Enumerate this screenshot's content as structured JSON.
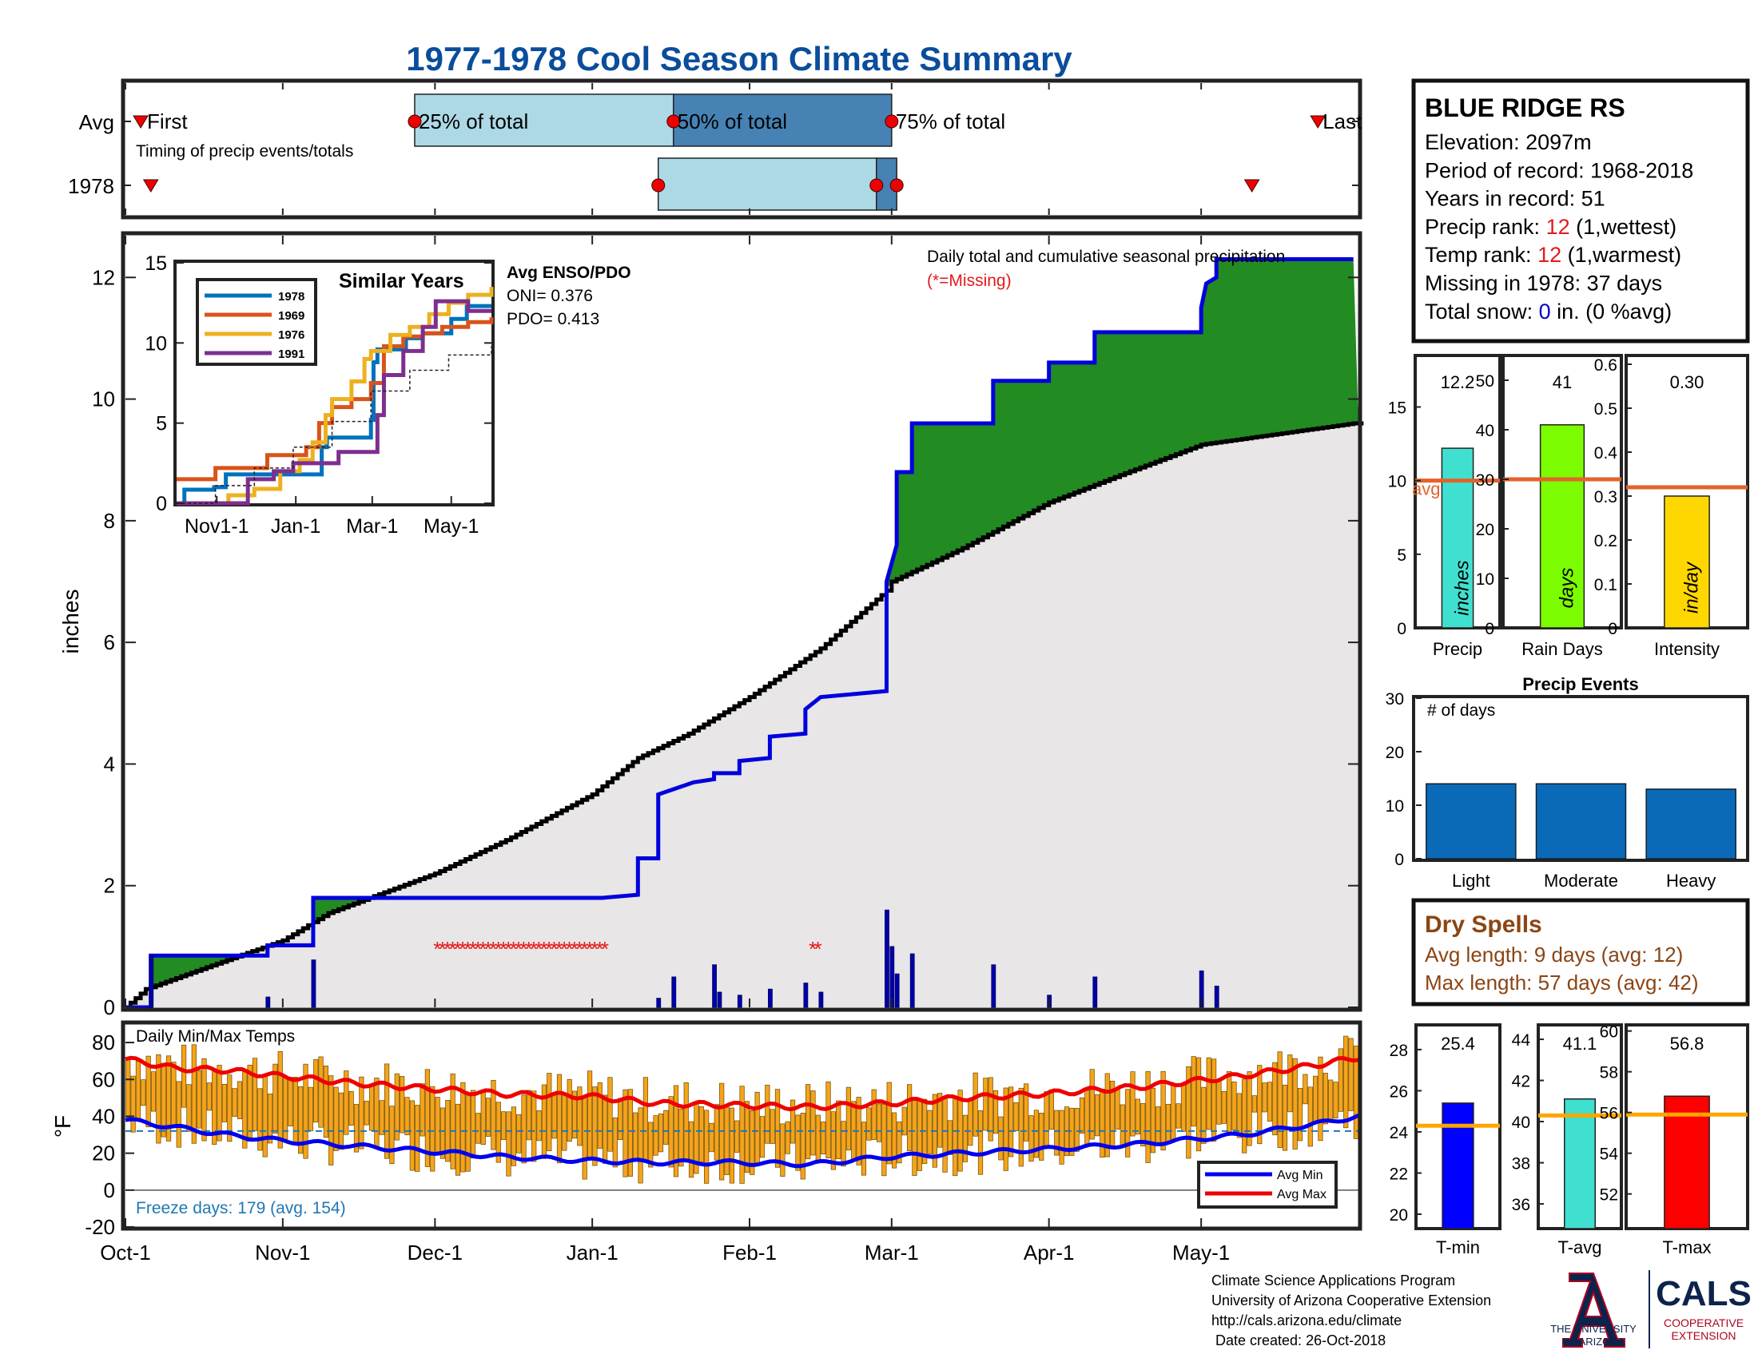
{
  "title": "1977-1978 Cool Season Climate Summary",
  "timing": {
    "rows": [
      "Avg",
      "1978"
    ],
    "subtitle": "Timing of precip events/totals",
    "labels": {
      "first": "First",
      "p25": "25% of total",
      "p50": "50% of total",
      "p75": "75% of total",
      "last": "Last"
    },
    "avg": {
      "first": "1977-10-04",
      "p25": "1977-11-27",
      "p50": "1978-01-17",
      "p75": "1978-03-01",
      "last": "1978-05-24"
    },
    "year": {
      "first": "1977-10-06",
      "p25": "1978-01-14",
      "p50": "1978-02-26",
      "p75": "1978-03-02",
      "last": "1978-05-11"
    },
    "colors": {
      "q1": "#add8e6",
      "q2": "#4682b4"
    }
  },
  "station": {
    "name": "BLUE RIDGE RS",
    "lines": [
      {
        "prefix": "Elevation: 2097m"
      },
      {
        "prefix": "Period of record: 1968-2018"
      },
      {
        "prefix": "Years in record: 51"
      },
      {
        "prefix": "Precip rank: ",
        "value": "12",
        "suffix": " (1,wettest)",
        "value_color": "#e41a1c"
      },
      {
        "prefix": "Temp rank: ",
        "value": "12",
        "suffix": " (1,warmest)",
        "value_color": "#e41a1c"
      },
      {
        "prefix": "Missing in 1978: 37 days"
      },
      {
        "prefix": "Total snow: ",
        "value": "0",
        "suffix": " in. (0 %avg)",
        "value_color": "#0000cc"
      }
    ]
  },
  "precip": {
    "ylabel": "inches",
    "note": "Daily total and cumulative seasonal precipitation",
    "missing_note": "(*=Missing)",
    "colors": {
      "above": "#228b22",
      "below": "#b8860b",
      "obs": "#0000dd",
      "avg": "#000000",
      "missing": "#e41a1c",
      "fill": "#e8e6e6"
    }
  },
  "inset": {
    "title": "Similar Years",
    "x_ticks": [
      "Nov1-1",
      "Jan-1",
      "Mar-1",
      "May-1"
    ],
    "y_ticks": [
      "0",
      "5",
      "10",
      "15"
    ],
    "legend": [
      "1978",
      "1969",
      "1976",
      "1991"
    ],
    "colors": [
      "#0072bd",
      "#d95319",
      "#edb120",
      "#7e2f8e"
    ]
  },
  "enso": {
    "title": "Avg ENSO/PDO",
    "oni": "ONI= 0.376",
    "pdo": "PDO= 0.413"
  },
  "temps": {
    "title": "Daily Min/Max Temps",
    "ylabel": "°F",
    "freeze_text": "Freeze days: 179 (avg. 154)",
    "legend_min": "Avg Min",
    "legend_max": "Avg Max",
    "colors": {
      "bars": "#f5a31a",
      "min": "#0000ee",
      "max": "#ee0000",
      "freeze": "#1f77b4"
    }
  },
  "x_axis": {
    "ticks": [
      "Oct-1",
      "Nov-1",
      "Dec-1",
      "Jan-1",
      "Feb-1",
      "Mar-1",
      "Apr-1",
      "May-1"
    ]
  },
  "summary_bars": [
    {
      "label": "Precip",
      "unit": "inches",
      "value": 12.2,
      "value_text": "12.2",
      "avg": 10,
      "avg_label": "avg",
      "ymax": 18.5,
      "ticks": [
        "0",
        "5",
        "10",
        "15"
      ],
      "color": "#40e0d0"
    },
    {
      "label": "Rain Days",
      "unit": "days",
      "value": 41,
      "value_text": "41",
      "avg": 30,
      "ymax": 55,
      "ticks": [
        "0",
        "10",
        "20",
        "30",
        "40",
        "50"
      ],
      "color": "#7cfc00"
    },
    {
      "label": "Intensity",
      "unit": "in/day",
      "value": 0.3,
      "value_text": "0.30",
      "avg": 0.32,
      "ymax": 0.62,
      "ticks": [
        "0",
        "0.1",
        "0.2",
        "0.3",
        "0.4",
        "0.5",
        "0.6"
      ],
      "color": "#ffd700"
    }
  ],
  "events": {
    "title": "Precip Events",
    "ylabel": "# of days",
    "ticks": [
      "0",
      "10",
      "20",
      "30"
    ],
    "categories": [
      "Light",
      "Moderate",
      "Heavy"
    ],
    "values": [
      14,
      14,
      13
    ],
    "color": "#0a6ab8"
  },
  "dry_spells": {
    "title": "Dry Spells",
    "avg_line": "Avg length: 9 days (avg: 12)",
    "max_line": "Max length: 57 days (avg: 42)",
    "color": "#8b4513"
  },
  "temp_bars": [
    {
      "label": "T-min",
      "value": 25.4,
      "value_text": "25.4",
      "avg": 24.3,
      "ylim": [
        19.3,
        29.2
      ],
      "ticks": [
        "20",
        "22",
        "24",
        "26",
        "28"
      ],
      "color": "#0000ff"
    },
    {
      "label": "T-avg",
      "value": 41.1,
      "value_text": "41.1",
      "avg": 40.3,
      "ylim": [
        34.8,
        44.7
      ],
      "ticks": [
        "36",
        "38",
        "40",
        "42",
        "44"
      ],
      "color": "#40e0d0"
    },
    {
      "label": "T-max",
      "value": 56.8,
      "value_text": "56.8",
      "avg": 55.9,
      "ylim": [
        50.3,
        60.3
      ],
      "ticks": [
        "52",
        "54",
        "56",
        "58",
        "60"
      ],
      "color": "#ff0000"
    }
  ],
  "footer": {
    "lines": [
      "Climate Science Applications Program",
      "University of Arizona Cooperative Extension",
      "http://cals.arizona.edu/climate",
      " Date created: 26-Oct-2018"
    ],
    "logo_ua_1": "THE UNIVERSITY",
    "logo_ua_2": "OF ARIZONA",
    "logo_cals": "CALS",
    "logo_cals_1": "COOPERATIVE",
    "logo_cals_2": "EXTENSION"
  },
  "chart_data": [
    {
      "type": "area",
      "title": "Daily total and cumulative seasonal precipitation",
      "ylabel": "inches",
      "ylim": [
        0,
        12.7
      ],
      "x_ticks": [
        "Oct-1",
        "Nov-1",
        "Dec-1",
        "Jan-1",
        "Feb-1",
        "Mar-1",
        "Apr-1",
        "May-1"
      ],
      "season_start": "1977-10-01",
      "season_end": "1978-05-31",
      "series": [
        {
          "name": "1978",
          "points": [
            [
              "1977-10-01",
              0
            ],
            [
              "1977-10-06",
              0
            ],
            [
              "1977-10-06",
              0.85
            ],
            [
              "1977-10-29",
              0.85
            ],
            [
              "1977-10-29",
              1.02
            ],
            [
              "1977-11-07",
              1.02
            ],
            [
              "1977-11-07",
              1.8
            ],
            [
              "1978-01-03",
              1.8
            ],
            [
              "1978-01-10",
              1.85
            ],
            [
              "1978-01-10",
              2.45
            ],
            [
              "1978-01-14",
              2.45
            ],
            [
              "1978-01-14",
              3.5
            ],
            [
              "1978-01-21",
              3.7
            ],
            [
              "1978-01-25",
              3.75
            ],
            [
              "1978-01-25",
              3.85
            ],
            [
              "1978-01-30",
              3.85
            ],
            [
              "1978-01-30",
              4.05
            ],
            [
              "1978-02-05",
              4.1
            ],
            [
              "1978-02-05",
              4.45
            ],
            [
              "1978-02-12",
              4.5
            ],
            [
              "1978-02-12",
              4.9
            ],
            [
              "1978-02-15",
              5.1
            ],
            [
              "1978-02-28",
              5.2
            ],
            [
              "1978-02-28",
              7.0
            ],
            [
              "1978-03-02",
              7.6
            ],
            [
              "1978-03-02",
              8.8
            ],
            [
              "1978-03-05",
              8.8
            ],
            [
              "1978-03-05",
              9.6
            ],
            [
              "1978-03-21",
              9.6
            ],
            [
              "1978-03-21",
              10.3
            ],
            [
              "1978-04-01",
              10.3
            ],
            [
              "1978-04-01",
              10.6
            ],
            [
              "1978-04-10",
              10.6
            ],
            [
              "1978-04-10",
              11.1
            ],
            [
              "1978-05-01",
              11.1
            ],
            [
              "1978-05-01",
              11.5
            ],
            [
              "1978-05-02",
              11.9
            ],
            [
              "1978-05-04",
              12.0
            ],
            [
              "1978-05-04",
              12.3
            ],
            [
              "1978-05-31",
              12.3
            ]
          ]
        },
        {
          "name": "Average",
          "points": [
            [
              "1977-10-01",
              0
            ],
            [
              "1977-10-05",
              0.3
            ],
            [
              "1977-10-15",
              0.6
            ],
            [
              "1977-11-01",
              1.1
            ],
            [
              "1977-11-10",
              1.55
            ],
            [
              "1977-12-01",
              2.2
            ],
            [
              "1977-12-15",
              2.75
            ],
            [
              "1978-01-01",
              3.5
            ],
            [
              "1978-01-10",
              4.1
            ],
            [
              "1978-01-20",
              4.5
            ],
            [
              "1978-02-01",
              5.1
            ],
            [
              "1978-02-15",
              5.9
            ],
            [
              "1978-02-28",
              6.85
            ],
            [
              "1978-03-01",
              7.0
            ],
            [
              "1978-03-15",
              7.55
            ],
            [
              "1978-04-01",
              8.3
            ],
            [
              "1978-04-15",
              8.75
            ],
            [
              "1978-05-01",
              9.25
            ],
            [
              "1978-05-31",
              9.6
            ]
          ]
        }
      ],
      "daily_precip": [
        [
          "1977-10-06",
          0.85
        ],
        [
          "1977-10-29",
          0.17
        ],
        [
          "1977-11-07",
          0.78
        ],
        [
          "1978-01-14",
          0.15
        ],
        [
          "1978-01-17",
          0.5
        ],
        [
          "1978-01-25",
          0.7
        ],
        [
          "1978-01-26",
          0.25
        ],
        [
          "1978-01-30",
          0.2
        ],
        [
          "1978-02-05",
          0.3
        ],
        [
          "1978-02-12",
          0.4
        ],
        [
          "1978-02-15",
          0.25
        ],
        [
          "1978-02-28",
          1.6
        ],
        [
          "1978-03-01",
          1.0
        ],
        [
          "1978-03-02",
          0.55
        ],
        [
          "1978-03-05",
          0.88
        ],
        [
          "1978-03-21",
          0.7
        ],
        [
          "1978-04-01",
          0.2
        ],
        [
          "1978-04-10",
          0.5
        ],
        [
          "1978-05-01",
          0.6
        ],
        [
          "1978-05-04",
          0.35
        ]
      ],
      "missing_days": {
        "from": "1977-12-01",
        "to": "1978-01-03",
        "extra": [
          "1978-02-13",
          "1978-02-14"
        ]
      }
    },
    {
      "type": "line",
      "title": "Similar Years",
      "ylim": [
        0,
        15
      ],
      "series": [
        {
          "name": "1978",
          "x": [
            0,
            6,
            6,
            29,
            29,
            38,
            38,
            105,
            112,
            112,
            116,
            116,
            150,
            150,
            152,
            152,
            155,
            172,
            177,
            177,
            190,
            212,
            212,
            224,
            224,
            243
          ],
          "y": [
            0,
            0,
            0.85,
            0.85,
            1.0,
            1.0,
            1.8,
            1.8,
            1.9,
            3.5,
            3.5,
            4.1,
            5.2,
            5.2,
            8.8,
            8.8,
            9.6,
            9.6,
            10.3,
            10.3,
            10.6,
            11.1,
            11.5,
            11.5,
            12.3,
            12.3
          ]
        },
        {
          "name": "1969",
          "x": [
            0,
            10,
            30,
            50,
            70,
            90,
            100,
            110,
            120,
            135,
            150,
            160,
            175,
            190,
            205,
            225,
            243
          ],
          "y": [
            1.5,
            1.5,
            2.2,
            2.2,
            3.0,
            3.0,
            3.5,
            5.0,
            6.0,
            6.5,
            7.5,
            9.8,
            10.4,
            10.6,
            11.0,
            11.3,
            11.6
          ]
        },
        {
          "name": "1976",
          "x": [
            0,
            25,
            40,
            60,
            80,
            95,
            105,
            115,
            120,
            135,
            145,
            150,
            165,
            180,
            195,
            210,
            225,
            243
          ],
          "y": [
            0,
            0,
            0.5,
            0.9,
            2.0,
            2.7,
            3.8,
            5.5,
            6.5,
            7.6,
            9.0,
            9.5,
            10.5,
            11.0,
            11.8,
            12.5,
            13.0,
            13.5
          ]
        },
        {
          "name": "1991",
          "x": [
            0,
            40,
            55,
            75,
            90,
            110,
            125,
            140,
            155,
            160,
            175,
            190,
            200,
            215,
            225,
            243
          ],
          "y": [
            0,
            0,
            1.5,
            2.0,
            2.5,
            2.5,
            3.2,
            3.2,
            5.5,
            8.0,
            9.5,
            11.0,
            12.6,
            12.6,
            12.0,
            12.0
          ]
        },
        {
          "name": "Average",
          "x": [
            0,
            30,
            60,
            90,
            120,
            150,
            180,
            210,
            243
          ],
          "y": [
            0,
            1.1,
            2.2,
            3.5,
            5.1,
            7.0,
            8.3,
            9.25,
            9.8
          ]
        }
      ]
    },
    {
      "type": "bar",
      "title": "Daily Min/Max Temps",
      "ylabel": "°F",
      "ylim": [
        -20,
        90
      ],
      "freeze_line": 32,
      "avg_max": {
        "x": [
          0,
          10,
          20,
          30,
          45,
          60,
          75,
          91,
          105,
          120,
          135,
          150,
          165,
          180,
          200,
          220,
          235,
          243
        ],
        "y": [
          71,
          66,
          65,
          62,
          58,
          55,
          52,
          51,
          47,
          46,
          45,
          47,
          50,
          52,
          56,
          62,
          68,
          72
        ]
      },
      "avg_min": {
        "x": [
          0,
          10,
          20,
          30,
          45,
          60,
          75,
          91,
          105,
          120,
          135,
          150,
          165,
          180,
          200,
          220,
          235,
          243
        ],
        "y": [
          38,
          34,
          30,
          27,
          24,
          21,
          18,
          16,
          15,
          15,
          14,
          18,
          20,
          22,
          25,
          30,
          36,
          40
        ]
      },
      "daily_range": "randomized around avg min/max (daily values not labeled)"
    },
    {
      "type": "bar",
      "categories": [
        "Precip",
        "Rain Days",
        "Intensity"
      ],
      "values": [
        12.2,
        41,
        0.3
      ],
      "averages": [
        10,
        30,
        0.32
      ]
    },
    {
      "type": "bar",
      "title": "Precip Events",
      "categories": [
        "Light",
        "Moderate",
        "Heavy"
      ],
      "values": [
        14,
        14,
        13
      ],
      "ylim": [
        0,
        30
      ]
    },
    {
      "type": "bar",
      "categories": [
        "T-min",
        "T-avg",
        "T-max"
      ],
      "values": [
        25.4,
        41.1,
        56.8
      ],
      "averages": [
        24.3,
        40.3,
        55.9
      ]
    }
  ]
}
